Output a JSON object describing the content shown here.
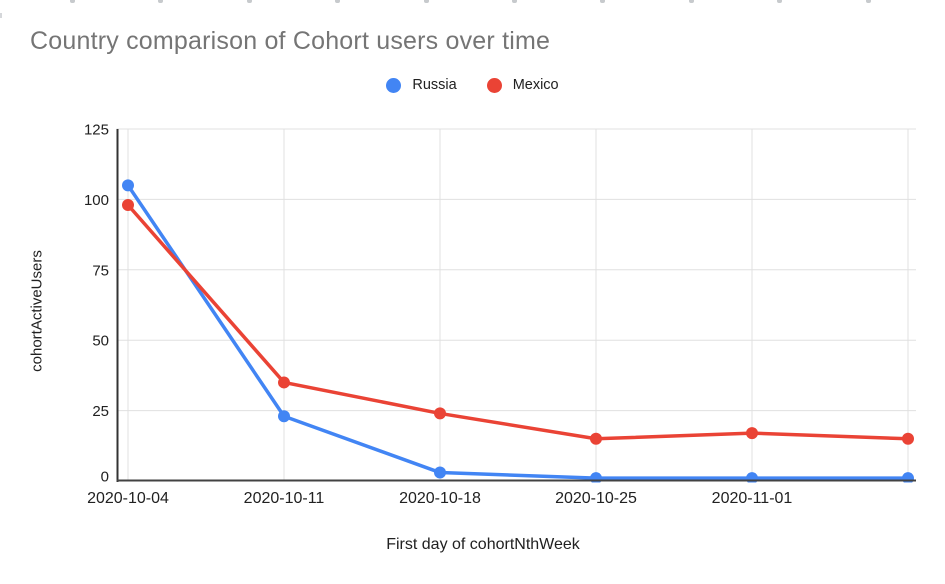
{
  "chart_data": {
    "type": "line",
    "title": "Country comparison of Cohort users over time",
    "xlabel": "First day of cohortNthWeek",
    "ylabel": "cohortActiveUsers",
    "categories": [
      "2020-10-04",
      "2020-10-11",
      "2020-10-18",
      "2020-10-25",
      "2020-11-01",
      ""
    ],
    "series": [
      {
        "name": "Russia",
        "color": "#4285F4",
        "values": [
          105,
          23,
          3,
          1,
          1,
          1
        ]
      },
      {
        "name": "Mexico",
        "color": "#EA4335",
        "values": [
          98,
          35,
          24,
          15,
          17,
          15
        ]
      }
    ],
    "yticks": [
      0,
      25,
      50,
      75,
      100,
      125
    ],
    "ylim": [
      0,
      125
    ],
    "grid": true,
    "legend_position": "top-center",
    "colors": {
      "title": "#757575",
      "tick": "#212121",
      "axis_title": "#212121",
      "gridline": "#e0e0e0",
      "axis_line": "#424242",
      "background": "#ffffff"
    }
  }
}
